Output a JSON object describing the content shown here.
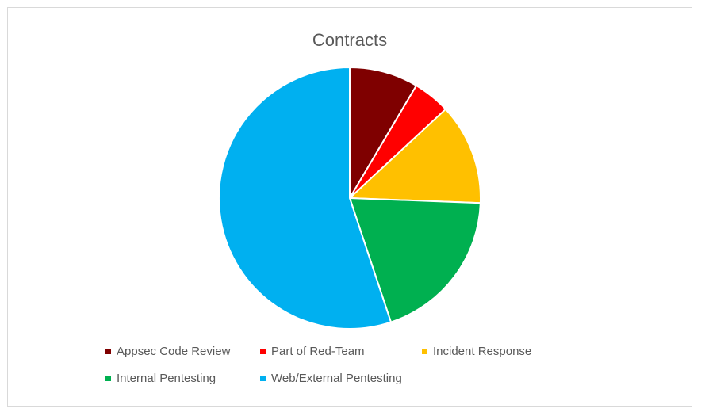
{
  "chart_data": {
    "type": "pie",
    "title": "Contracts",
    "categories": [
      "Appsec Code Review",
      "Part of Red-Team",
      "Incident Response",
      "Internal Pentesting",
      "Web/External Pentesting"
    ],
    "values": [
      8.5,
      4.6,
      12.5,
      19.3,
      55.1
    ],
    "colors": [
      "#7f0000",
      "#ff0000",
      "#ffc000",
      "#00b050",
      "#00b0f0"
    ],
    "legend_position": "bottom"
  }
}
